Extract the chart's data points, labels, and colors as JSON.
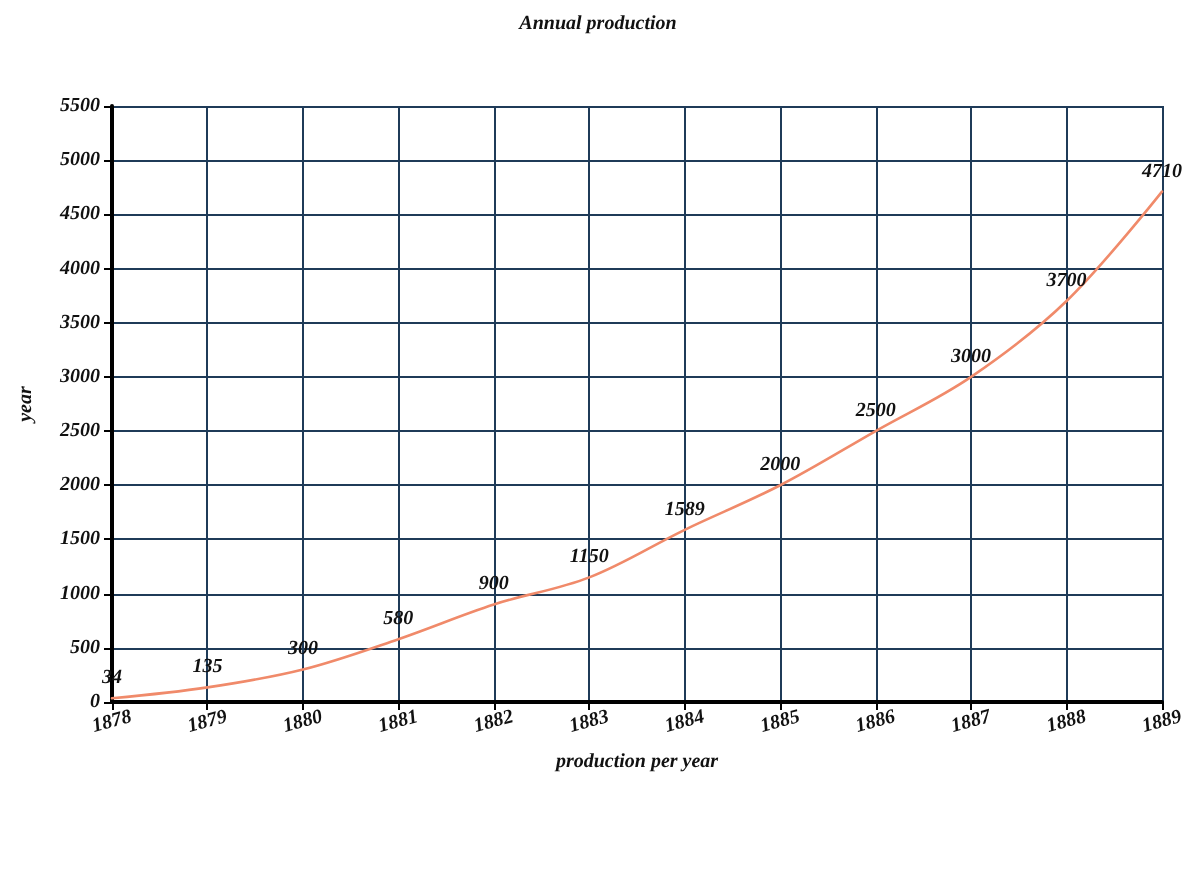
{
  "chart_data": {
    "type": "line",
    "title": "Annual production",
    "xlabel": "production per year",
    "ylabel": "year",
    "x": [
      1878,
      1879,
      1880,
      1881,
      1882,
      1883,
      1884,
      1885,
      1886,
      1887,
      1888,
      1889
    ],
    "series": [
      {
        "color": "#f08a6a",
        "values": [
          34,
          135,
          300,
          580,
          900,
          1150,
          1589,
          2000,
          2500,
          3000,
          3700,
          4710
        ]
      }
    ],
    "xlim": [
      1878,
      1889
    ],
    "xticks": [
      1878,
      1879,
      1880,
      1881,
      1882,
      1883,
      1884,
      1885,
      1886,
      1887,
      1888,
      1889
    ],
    "ylim": [
      0,
      5500
    ],
    "yticks": [
      0,
      500,
      1000,
      1500,
      2000,
      2500,
      3000,
      3500,
      4000,
      4500,
      5000,
      5500
    ],
    "grid": true,
    "data_labels": true,
    "marker": "none"
  }
}
